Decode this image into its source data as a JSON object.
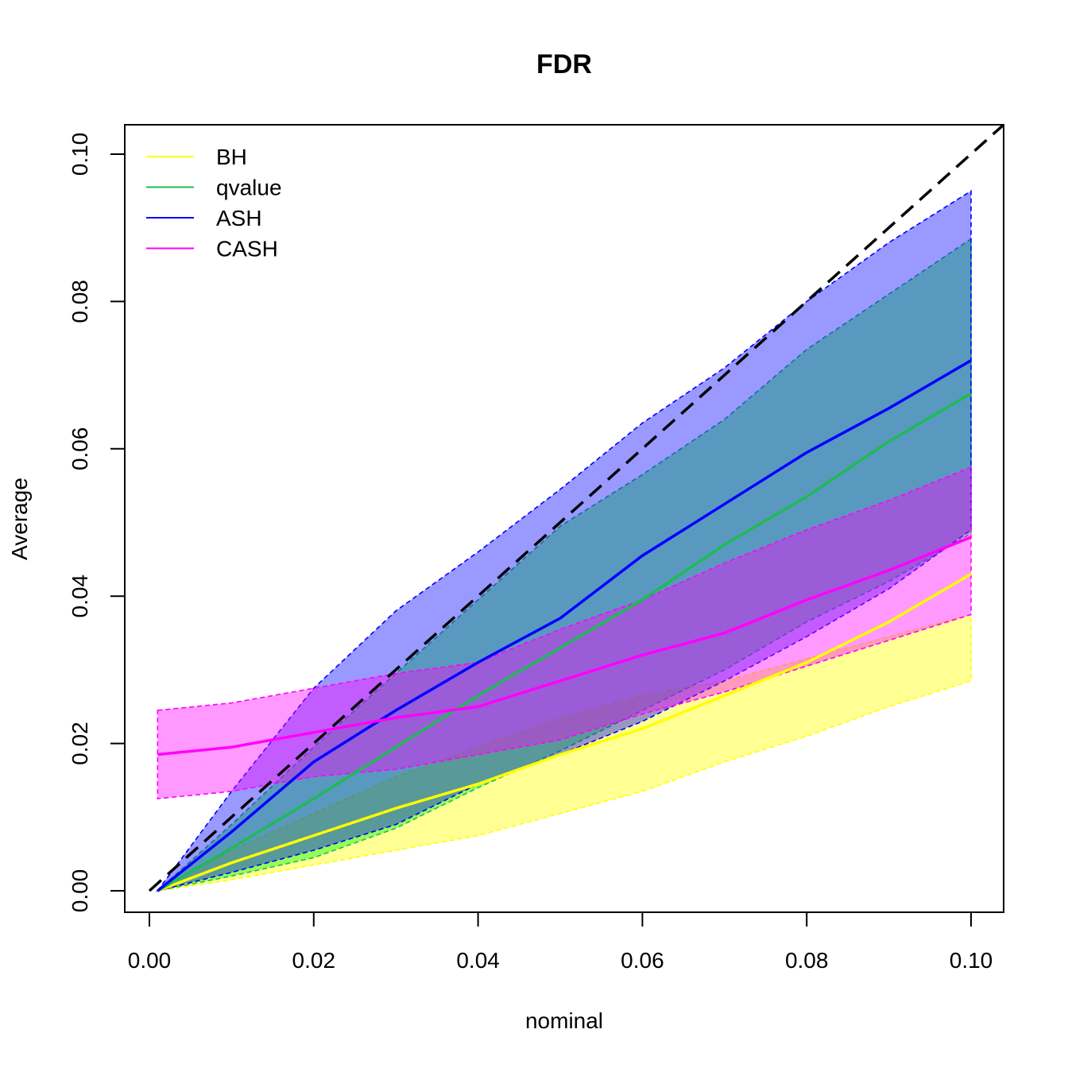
{
  "chart_data": {
    "type": "line",
    "title": "FDR",
    "xlabel": "nominal",
    "ylabel": "Average",
    "xlim": [
      0,
      0.1
    ],
    "ylim": [
      0,
      0.1
    ],
    "x_ticks": [
      "0.00",
      "0.02",
      "0.04",
      "0.06",
      "0.08",
      "0.10"
    ],
    "y_ticks": [
      "0.00",
      "0.02",
      "0.04",
      "0.06",
      "0.08",
      "0.10"
    ],
    "grid": false,
    "legend_position": "top-left",
    "reference_line": "y = x",
    "series": [
      {
        "name": "BH",
        "color": "#ffff00",
        "fill": "rgba(255,255,0,0.42)",
        "x": [
          0.001,
          0.01,
          0.02,
          0.03,
          0.04,
          0.05,
          0.06,
          0.07,
          0.08,
          0.09,
          0.1
        ],
        "mean": [
          0.0,
          0.0038,
          0.0075,
          0.0112,
          0.0145,
          0.0185,
          0.022,
          0.0265,
          0.031,
          0.0365,
          0.043
        ],
        "lower": [
          0.0,
          0.0015,
          0.0035,
          0.0055,
          0.0075,
          0.0105,
          0.0135,
          0.0175,
          0.021,
          0.025,
          0.0285
        ],
        "upper": [
          0.0,
          0.0055,
          0.0105,
          0.0155,
          0.0195,
          0.0235,
          0.0265,
          0.0285,
          0.0315,
          0.0345,
          0.0375
        ]
      },
      {
        "name": "qvalue",
        "color": "#1fba55",
        "fill": "rgba(0,255,0,0.42)",
        "x": [
          0.001,
          0.01,
          0.02,
          0.03,
          0.04,
          0.05,
          0.06,
          0.07,
          0.08,
          0.09,
          0.1
        ],
        "mean": [
          0.0,
          0.0058,
          0.0125,
          0.0195,
          0.0265,
          0.033,
          0.0395,
          0.047,
          0.0535,
          0.061,
          0.0675
        ],
        "lower": [
          0.0,
          0.002,
          0.0045,
          0.0085,
          0.014,
          0.019,
          0.0245,
          0.03,
          0.0365,
          0.042,
          0.0485
        ],
        "upper": [
          0.0,
          0.009,
          0.0195,
          0.0295,
          0.0395,
          0.0495,
          0.0565,
          0.064,
          0.0735,
          0.081,
          0.0885
        ]
      },
      {
        "name": "ASH",
        "color": "#0000ff",
        "fill": "rgba(0,0,255,0.40)",
        "x": [
          0.001,
          0.01,
          0.02,
          0.03,
          0.04,
          0.05,
          0.06,
          0.07,
          0.08,
          0.09,
          0.1
        ],
        "mean": [
          0.0,
          0.008,
          0.0175,
          0.0245,
          0.031,
          0.037,
          0.0455,
          0.0525,
          0.0595,
          0.0655,
          0.072
        ],
        "lower": [
          0.0,
          0.0025,
          0.0055,
          0.009,
          0.0145,
          0.0185,
          0.023,
          0.0285,
          0.0345,
          0.041,
          0.049
        ],
        "upper": [
          0.0,
          0.0135,
          0.0275,
          0.038,
          0.046,
          0.0545,
          0.0635,
          0.071,
          0.08,
          0.088,
          0.095
        ]
      },
      {
        "name": "CASH",
        "color": "#ff00ff",
        "fill": "rgba(255,0,255,0.40)",
        "x": [
          0.001,
          0.01,
          0.02,
          0.03,
          0.04,
          0.05,
          0.06,
          0.07,
          0.08,
          0.09,
          0.1
        ],
        "mean": [
          0.0185,
          0.0195,
          0.0215,
          0.0235,
          0.025,
          0.0285,
          0.032,
          0.035,
          0.0395,
          0.0435,
          0.048
        ],
        "lower": [
          0.0125,
          0.0135,
          0.0155,
          0.0165,
          0.0185,
          0.0205,
          0.024,
          0.027,
          0.0305,
          0.034,
          0.0375
        ],
        "upper": [
          0.0245,
          0.0255,
          0.0275,
          0.0295,
          0.031,
          0.0355,
          0.0395,
          0.0445,
          0.049,
          0.053,
          0.0575
        ]
      }
    ]
  }
}
